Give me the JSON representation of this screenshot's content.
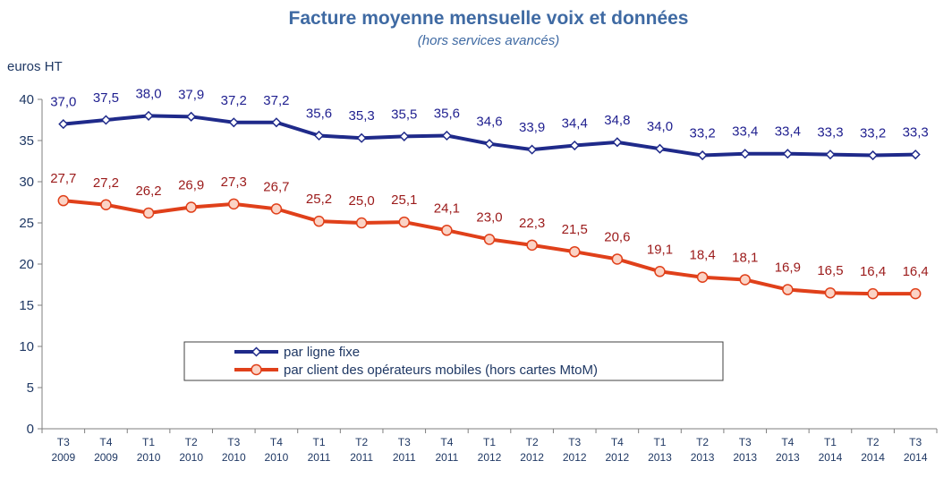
{
  "chart_data": {
    "type": "line",
    "title": "Facture moyenne mensuelle voix et données",
    "subtitle": "(hors services avancés)",
    "ylabel": "euros HT",
    "ylim": [
      0,
      40
    ],
    "yticks": [
      0,
      5,
      10,
      15,
      20,
      25,
      30,
      35,
      40
    ],
    "categories": [
      [
        "T3",
        "2009"
      ],
      [
        "T4",
        "2009"
      ],
      [
        "T1",
        "2010"
      ],
      [
        "T2",
        "2010"
      ],
      [
        "T3",
        "2010"
      ],
      [
        "T4",
        "2010"
      ],
      [
        "T1",
        "2011"
      ],
      [
        "T2",
        "2011"
      ],
      [
        "T3",
        "2011"
      ],
      [
        "T4",
        "2011"
      ],
      [
        "T1",
        "2012"
      ],
      [
        "T2",
        "2012"
      ],
      [
        "T3",
        "2012"
      ],
      [
        "T4",
        "2012"
      ],
      [
        "T1",
        "2013"
      ],
      [
        "T2",
        "2013"
      ],
      [
        "T3",
        "2013"
      ],
      [
        "T4",
        "2013"
      ],
      [
        "T1",
        "2014"
      ],
      [
        "T2",
        "2014"
      ],
      [
        "T3",
        "2014"
      ]
    ],
    "series": [
      {
        "name": "par ligne fixe",
        "color": "#1f2a8a",
        "marker": "diamond",
        "values": [
          37.0,
          37.5,
          38.0,
          37.9,
          37.2,
          37.2,
          35.6,
          35.3,
          35.5,
          35.6,
          34.6,
          33.9,
          34.4,
          34.8,
          34.0,
          33.2,
          33.4,
          33.4,
          33.3,
          33.2,
          33.3
        ],
        "labels": [
          "37,0",
          "37,5",
          "38,0",
          "37,9",
          "37,2",
          "37,2",
          "35,6",
          "35,3",
          "35,5",
          "35,6",
          "34,6",
          "33,9",
          "34,4",
          "34,8",
          "34,0",
          "33,2",
          "33,4",
          "33,4",
          "33,3",
          "33,2",
          "33,3"
        ]
      },
      {
        "name": "par client des opérateurs mobiles (hors cartes MtoM)",
        "color": "#e0401a",
        "marker": "circle",
        "values": [
          27.7,
          27.2,
          26.2,
          26.9,
          27.3,
          26.7,
          25.2,
          25.0,
          25.1,
          24.1,
          23.0,
          22.3,
          21.5,
          20.6,
          19.1,
          18.4,
          18.1,
          16.9,
          16.5,
          16.4,
          16.4
        ],
        "labels": [
          "27,7",
          "27,2",
          "26,2",
          "26,9",
          "27,3",
          "26,7",
          "25,2",
          "25,0",
          "25,1",
          "24,1",
          "23,0",
          "22,3",
          "21,5",
          "20,6",
          "19,1",
          "18,4",
          "18,1",
          "16,9",
          "16,5",
          "16,4",
          "16,4"
        ]
      }
    ],
    "legend_position": "bottom-center",
    "grid": false
  }
}
